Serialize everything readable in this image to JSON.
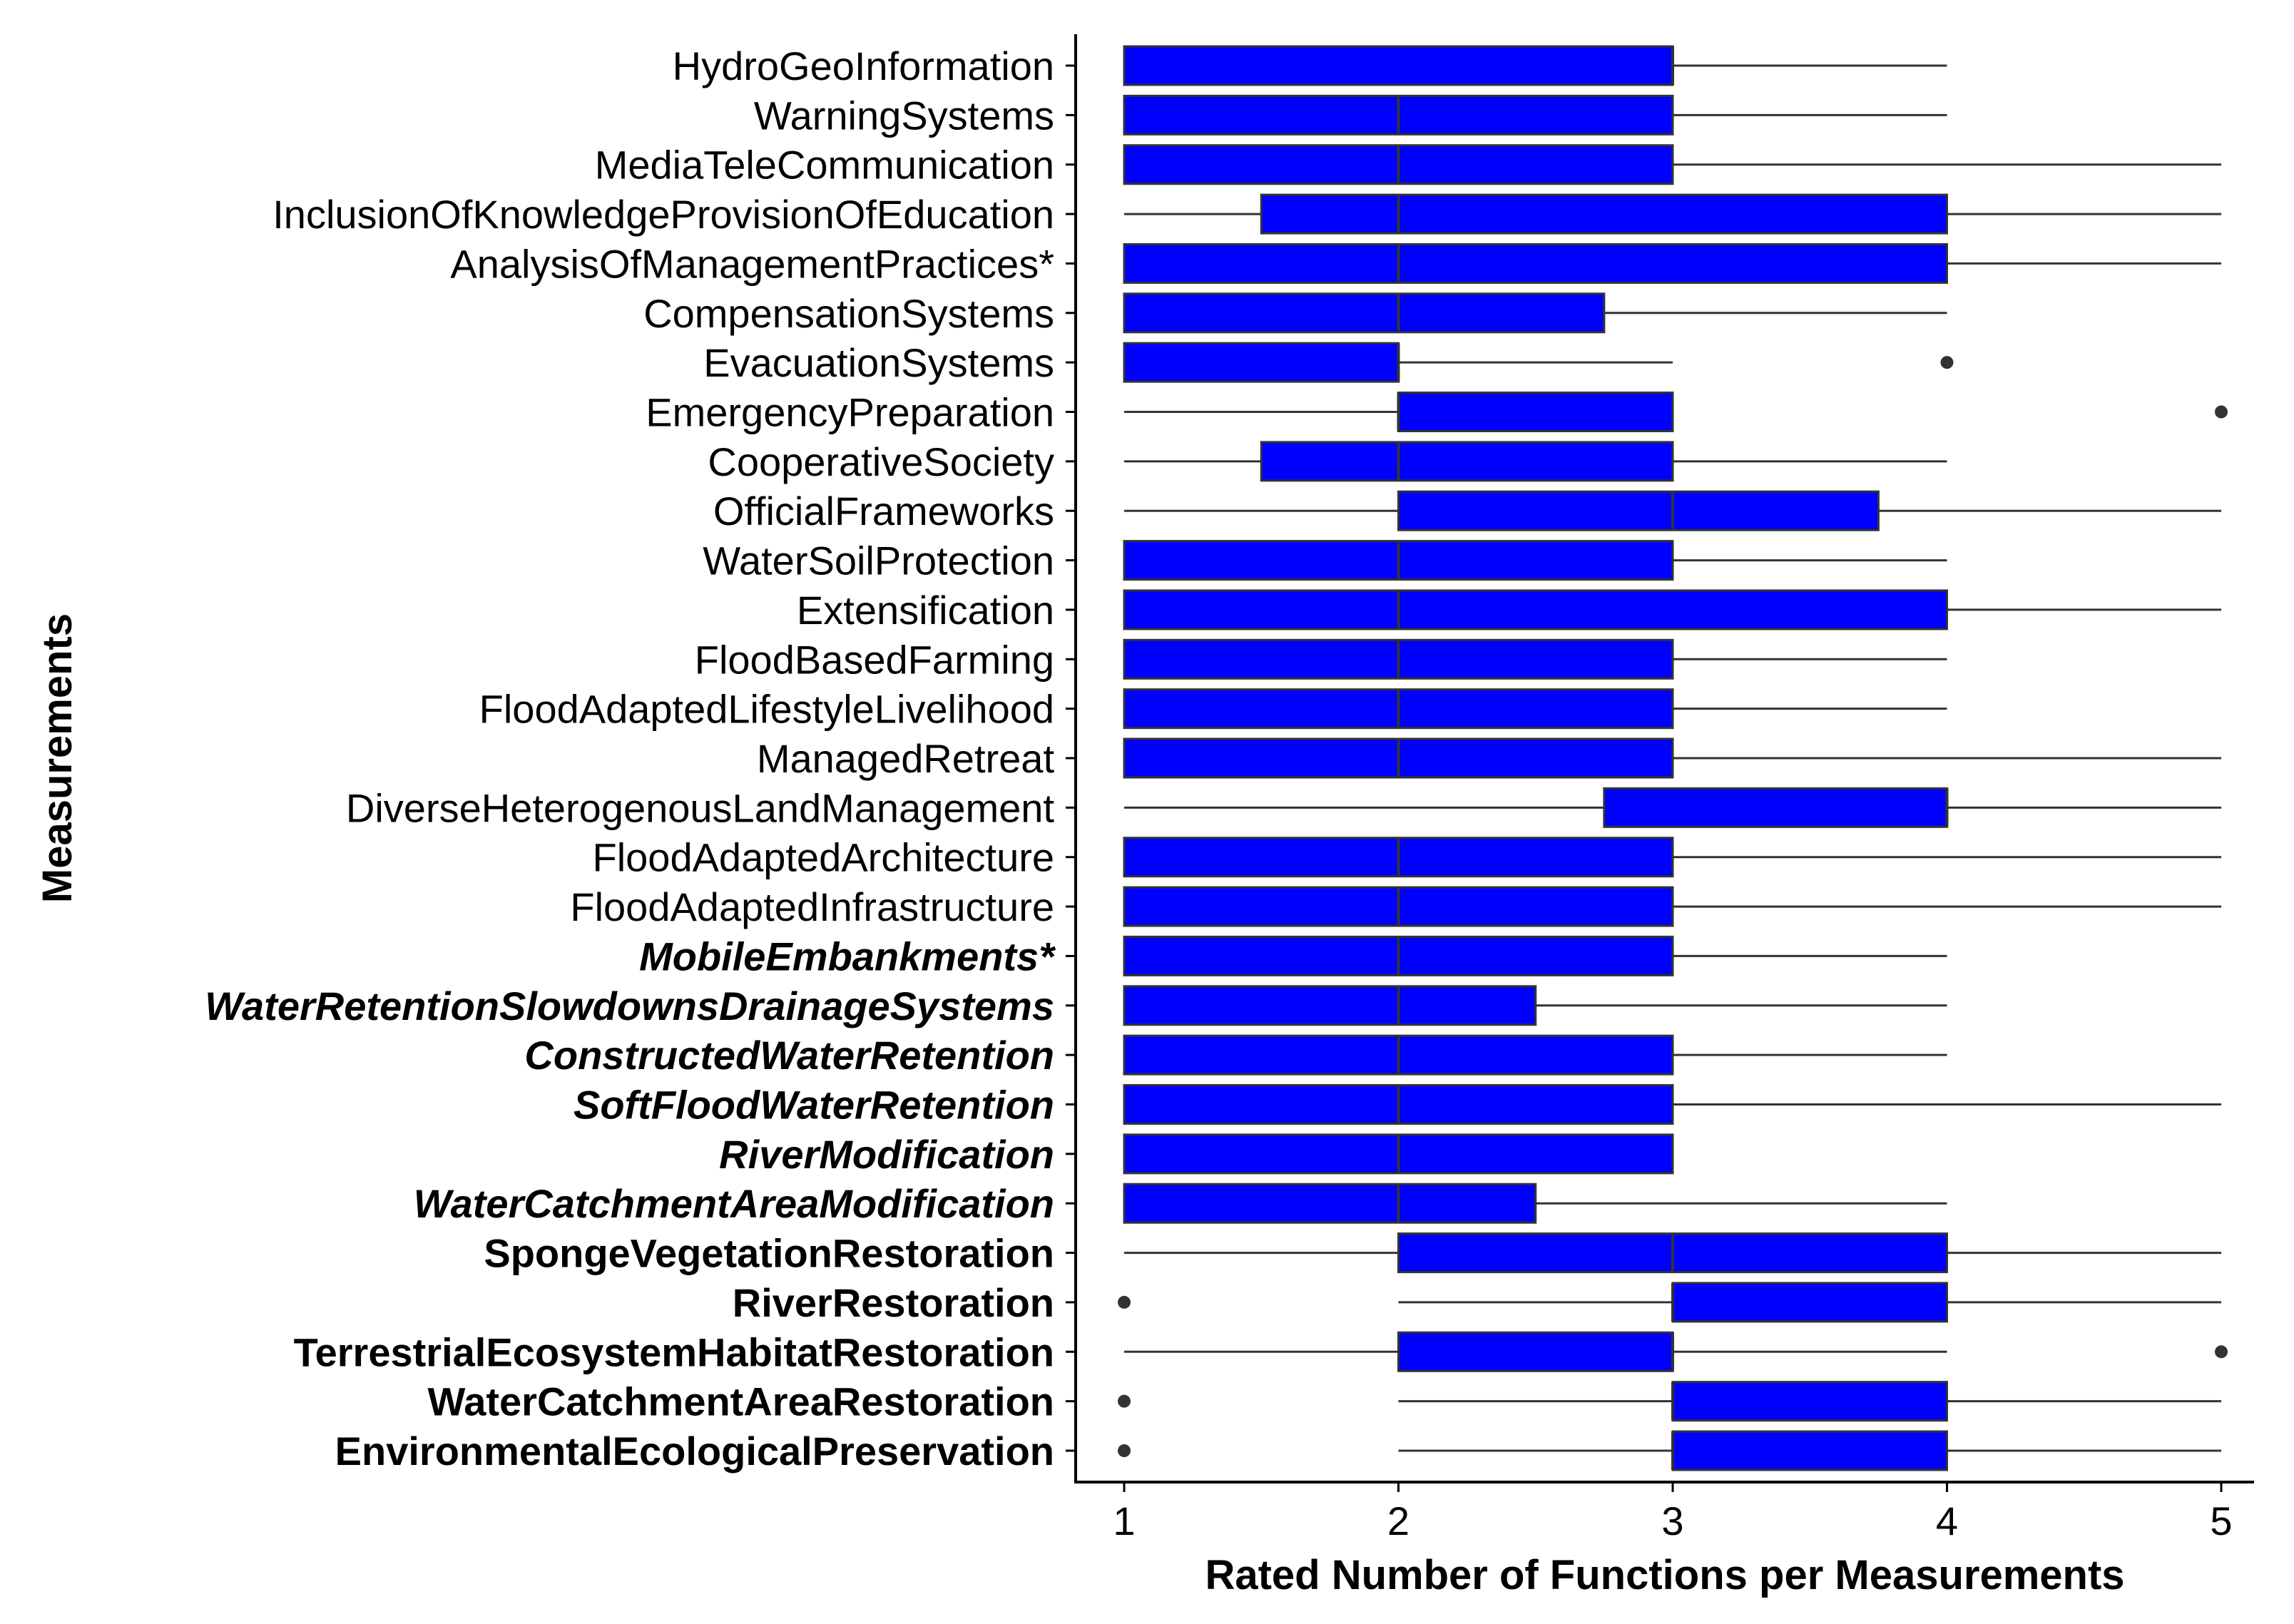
{
  "chart_data": {
    "type": "box",
    "orientation": "horizontal",
    "xlabel": "Rated Number of Functions per Measurements",
    "ylabel": "Measurements",
    "xlim": [
      0.8,
      5.1
    ],
    "xticks": [
      1,
      2,
      3,
      4,
      5
    ],
    "grid": false,
    "box_color": "#0000ff",
    "whisker_color": "#333333",
    "categories": [
      {
        "label": "HydroGeoInformation",
        "style": "normal",
        "whisker_low": 1,
        "q1": 1,
        "median": 3,
        "q3": 3,
        "whisker_high": 4,
        "outliers": []
      },
      {
        "label": "WarningSystems",
        "style": "normal",
        "whisker_low": 1,
        "q1": 1,
        "median": 2,
        "q3": 3,
        "whisker_high": 4,
        "outliers": []
      },
      {
        "label": "MediaTeleCommunication",
        "style": "normal",
        "whisker_low": 1,
        "q1": 1,
        "median": 2,
        "q3": 3,
        "whisker_high": 5,
        "outliers": []
      },
      {
        "label": "InclusionOfKnowledgeProvisionOfEducation",
        "style": "normal",
        "whisker_low": 1,
        "q1": 1.5,
        "median": 2,
        "q3": 4,
        "whisker_high": 5,
        "outliers": []
      },
      {
        "label": "AnalysisOfManagementPractices*",
        "style": "normal",
        "whisker_low": 1,
        "q1": 1,
        "median": 2,
        "q3": 4,
        "whisker_high": 5,
        "outliers": []
      },
      {
        "label": "CompensationSystems",
        "style": "normal",
        "whisker_low": 1,
        "q1": 1,
        "median": 2,
        "q3": 2.75,
        "whisker_high": 4,
        "outliers": []
      },
      {
        "label": "EvacuationSystems",
        "style": "normal",
        "whisker_low": 1,
        "q1": 1,
        "median": 2,
        "q3": 2,
        "whisker_high": 3,
        "outliers": [
          4
        ]
      },
      {
        "label": "EmergencyPreparation",
        "style": "normal",
        "whisker_low": 1,
        "q1": 2,
        "median": 2,
        "q3": 3,
        "whisker_high": 3,
        "outliers": [
          5
        ]
      },
      {
        "label": "CooperativeSociety",
        "style": "normal",
        "whisker_low": 1,
        "q1": 1.5,
        "median": 2,
        "q3": 3,
        "whisker_high": 4,
        "outliers": []
      },
      {
        "label": "OfficialFrameworks",
        "style": "normal",
        "whisker_low": 1,
        "q1": 2,
        "median": 3,
        "q3": 3.75,
        "whisker_high": 5,
        "outliers": []
      },
      {
        "label": "WaterSoilProtection",
        "style": "normal",
        "whisker_low": 1,
        "q1": 1,
        "median": 2,
        "q3": 3,
        "whisker_high": 4,
        "outliers": []
      },
      {
        "label": "Extensification",
        "style": "normal",
        "whisker_low": 1,
        "q1": 1,
        "median": 2,
        "q3": 4,
        "whisker_high": 5,
        "outliers": []
      },
      {
        "label": "FloodBasedFarming",
        "style": "normal",
        "whisker_low": 1,
        "q1": 1,
        "median": 2,
        "q3": 3,
        "whisker_high": 4,
        "outliers": []
      },
      {
        "label": "FloodAdaptedLifestyleLivelihood",
        "style": "normal",
        "whisker_low": 1,
        "q1": 1,
        "median": 2,
        "q3": 3,
        "whisker_high": 4,
        "outliers": []
      },
      {
        "label": "ManagedRetreat",
        "style": "normal",
        "whisker_low": 1,
        "q1": 1,
        "median": 2,
        "q3": 3,
        "whisker_high": 5,
        "outliers": []
      },
      {
        "label": "DiverseHeterogenousLandManagement",
        "style": "normal",
        "whisker_low": 1,
        "q1": 2.75,
        "median": 4,
        "q3": 4,
        "whisker_high": 5,
        "outliers": []
      },
      {
        "label": "FloodAdaptedArchitecture",
        "style": "normal",
        "whisker_low": 1,
        "q1": 1,
        "median": 2,
        "q3": 3,
        "whisker_high": 5,
        "outliers": []
      },
      {
        "label": "FloodAdaptedInfrastructure",
        "style": "normal",
        "whisker_low": 1,
        "q1": 1,
        "median": 2,
        "q3": 3,
        "whisker_high": 5,
        "outliers": []
      },
      {
        "label": "MobileEmbankments*",
        "style": "bold-italic",
        "whisker_low": 1,
        "q1": 1,
        "median": 2,
        "q3": 3,
        "whisker_high": 4,
        "outliers": []
      },
      {
        "label": "WaterRetentionSlowdownsDrainageSystems",
        "style": "bold-italic",
        "whisker_low": 1,
        "q1": 1,
        "median": 2,
        "q3": 2.5,
        "whisker_high": 4,
        "outliers": []
      },
      {
        "label": "ConstructedWaterRetention",
        "style": "bold-italic",
        "whisker_low": 1,
        "q1": 1,
        "median": 2,
        "q3": 3,
        "whisker_high": 4,
        "outliers": []
      },
      {
        "label": "SoftFloodWaterRetention",
        "style": "bold-italic",
        "whisker_low": 1,
        "q1": 1,
        "median": 2,
        "q3": 3,
        "whisker_high": 5,
        "outliers": []
      },
      {
        "label": "RiverModification",
        "style": "bold-italic",
        "whisker_low": 1,
        "q1": 1,
        "median": 2,
        "q3": 3,
        "whisker_high": 3,
        "outliers": []
      },
      {
        "label": "WaterCatchmentAreaModification",
        "style": "bold-italic",
        "whisker_low": 1,
        "q1": 1,
        "median": 2,
        "q3": 2.5,
        "whisker_high": 4,
        "outliers": []
      },
      {
        "label": "SpongeVegetationRestoration",
        "style": "bold",
        "whisker_low": 1,
        "q1": 2,
        "median": 3,
        "q3": 4,
        "whisker_high": 5,
        "outliers": []
      },
      {
        "label": "RiverRestoration",
        "style": "bold",
        "whisker_low": 2,
        "q1": 3,
        "median": 3,
        "q3": 4,
        "whisker_high": 5,
        "outliers": [
          1
        ]
      },
      {
        "label": "TerrestrialEcosystemHabitatRestoration",
        "style": "bold",
        "whisker_low": 1,
        "q1": 2,
        "median": 3,
        "q3": 3,
        "whisker_high": 4,
        "outliers": [
          5
        ]
      },
      {
        "label": "WaterCatchmentAreaRestoration",
        "style": "bold",
        "whisker_low": 2,
        "q1": 3,
        "median": 3,
        "q3": 4,
        "whisker_high": 5,
        "outliers": [
          1
        ]
      },
      {
        "label": "EnvironmentalEcologicalPreservation",
        "style": "bold",
        "whisker_low": 2,
        "q1": 3,
        "median": 3,
        "q3": 4,
        "whisker_high": 5,
        "outliers": [
          1
        ]
      }
    ]
  }
}
